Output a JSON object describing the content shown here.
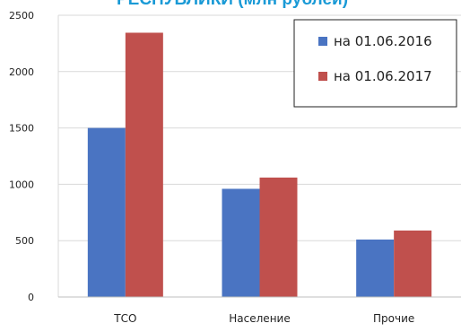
{
  "chart_data": {
    "type": "bar",
    "title": "РЕСПУБЛИКИ (млн рублей)",
    "categories": [
      "ТСО",
      "Население",
      "Прочие"
    ],
    "series": [
      {
        "name": "на 01.06.2016",
        "values": [
          1500,
          960,
          510
        ],
        "color": "#4a74c2"
      },
      {
        "name": "на 01.06.2017",
        "values": [
          2345,
          1060,
          590
        ],
        "color": "#c0504d"
      }
    ],
    "yticks": [
      "0",
      "500",
      "1000",
      "1500",
      "2000",
      "2500"
    ],
    "ylim": [
      0,
      2500
    ],
    "xlabel": "",
    "ylabel": "",
    "grid": true,
    "legend": "top-right"
  }
}
